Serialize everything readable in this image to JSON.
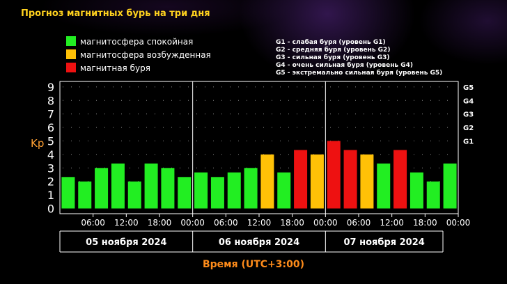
{
  "title": "Прогноз магнитных бурь на три дня",
  "legend": [
    {
      "label": "магнитосфера спокойная",
      "color": "#22ee22"
    },
    {
      "label": "магнитосфера возбужденная",
      "color": "#ffc107"
    },
    {
      "label": "магнитная буря",
      "color": "#ee1111"
    }
  ],
  "g_legend": [
    "G1 - слабая буря (уровень G1)",
    "G2 - средняя буря (уровень G2)",
    "G3 - сильная буря (уровень G3)",
    "G4 - очень сильная буря (уровень G4)",
    "G5 - экстремально сильная буря (уровень G5)"
  ],
  "chart_data": {
    "type": "bar",
    "ylabel": "Kp",
    "xlabel": "Время (UTC+3:00)",
    "ylim": [
      0,
      9
    ],
    "yticks": [
      "0",
      "1",
      "2",
      "3",
      "4",
      "5",
      "6",
      "7",
      "8",
      "9"
    ],
    "g_levels": [
      {
        "label": "G1",
        "kp": 5
      },
      {
        "label": "G2",
        "kp": 6
      },
      {
        "label": "G3",
        "kp": 7
      },
      {
        "label": "G4",
        "kp": 8
      },
      {
        "label": "G5",
        "kp": 9
      }
    ],
    "x_tick_labels": [
      "06:00",
      "12:00",
      "18:00",
      "00:00",
      "06:00",
      "12:00",
      "18:00",
      "00:00",
      "06:00",
      "12:00",
      "18:00",
      "00:00"
    ],
    "days": [
      "05 ноября 2024",
      "06 ноября 2024",
      "07 ноября 2024"
    ],
    "values": [
      2.33,
      2,
      3,
      3.33,
      2,
      3.33,
      3,
      2.33,
      2.67,
      2.33,
      2.67,
      3,
      4,
      2.67,
      4.33,
      4,
      5,
      4.33,
      4,
      3.33,
      4.33,
      2.67,
      2,
      3.33
    ],
    "levels": [
      "quiet",
      "quiet",
      "quiet",
      "quiet",
      "quiet",
      "quiet",
      "quiet",
      "quiet",
      "quiet",
      "quiet",
      "quiet",
      "quiet",
      "active",
      "quiet",
      "storm",
      "active",
      "storm",
      "storm",
      "active",
      "quiet",
      "storm",
      "quiet",
      "quiet",
      "quiet"
    ],
    "level_colors": {
      "quiet": "#22ee22",
      "active": "#ffc107",
      "storm": "#ee1111"
    },
    "grid": "dotted",
    "legend_position": "top"
  }
}
